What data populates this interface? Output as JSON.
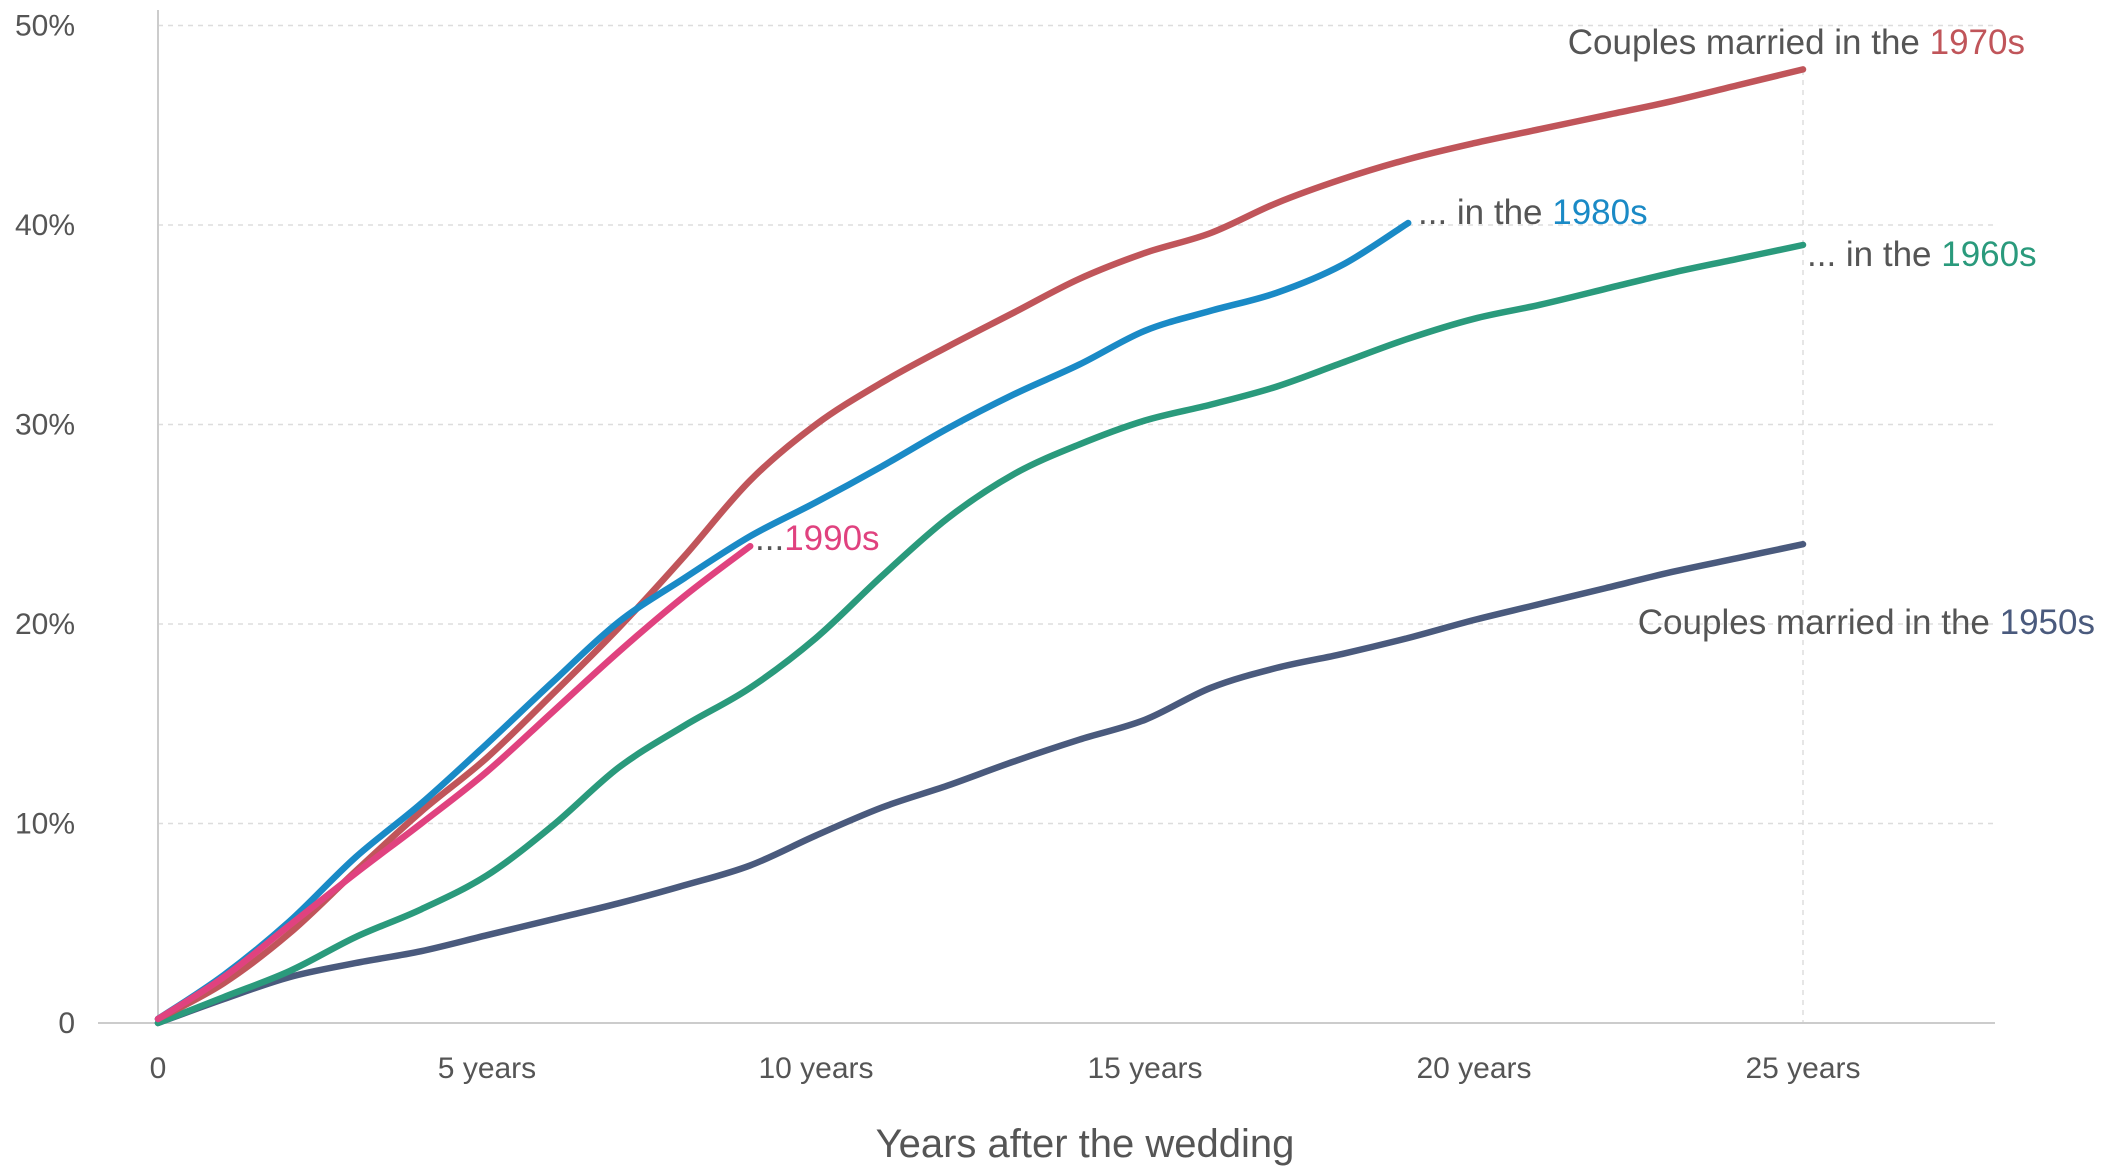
{
  "chart_data": {
    "type": "line",
    "xlabel": "Years after the wedding",
    "ylabel": "",
    "xlim": [
      0,
      28
    ],
    "ylim": [
      0,
      50
    ],
    "x_ticks": [
      {
        "value": 0,
        "label": "0"
      },
      {
        "value": 5,
        "label": "5 years"
      },
      {
        "value": 10,
        "label": "10 years"
      },
      {
        "value": 15,
        "label": "15 years"
      },
      {
        "value": 20,
        "label": "20 years"
      },
      {
        "value": 25,
        "label": "25 years"
      }
    ],
    "y_ticks": [
      {
        "value": 0,
        "label": "0"
      },
      {
        "value": 10,
        "label": "10%"
      },
      {
        "value": 20,
        "label": "20%"
      },
      {
        "value": 30,
        "label": "30%"
      },
      {
        "value": 40,
        "label": "40%"
      },
      {
        "value": 50,
        "label": "50%"
      }
    ],
    "grid": {
      "horizontal": true,
      "vertical_at_last_tick": true
    },
    "series": [
      {
        "name": "1950s",
        "color": "#4a5a7d",
        "label_prefix": "Couples married in the ",
        "label_highlight": "1950s",
        "x": [
          0,
          1,
          2,
          3,
          4,
          5,
          6,
          7,
          8,
          9,
          10,
          11,
          12,
          13,
          14,
          15,
          16,
          17,
          18,
          19,
          20,
          21,
          22,
          23,
          24,
          25
        ],
        "y": [
          0,
          1.2,
          2.3,
          3.0,
          3.6,
          4.4,
          5.2,
          6.0,
          6.9,
          7.9,
          9.4,
          10.8,
          11.9,
          13.1,
          14.2,
          15.2,
          16.8,
          17.8,
          18.5,
          19.3,
          20.2,
          21.0,
          21.8,
          22.6,
          23.3,
          24.0
        ]
      },
      {
        "name": "1960s",
        "color": "#2a9a7c",
        "label_prefix": "... in the ",
        "label_highlight": "1960s",
        "x": [
          0,
          1,
          2,
          3,
          4,
          5,
          6,
          7,
          8,
          9,
          10,
          11,
          12,
          13,
          14,
          15,
          16,
          17,
          18,
          19,
          20,
          21,
          22,
          23,
          24,
          25
        ],
        "y": [
          0,
          1.3,
          2.6,
          4.3,
          5.7,
          7.4,
          9.9,
          12.8,
          14.9,
          16.8,
          19.3,
          22.4,
          25.3,
          27.5,
          29.0,
          30.2,
          31.0,
          31.9,
          33.1,
          34.3,
          35.3,
          36.0,
          36.8,
          37.6,
          38.3,
          39.0
        ]
      },
      {
        "name": "1970s",
        "color": "#c0555a",
        "label_prefix": "Couples married in the ",
        "label_highlight": "1970s",
        "x": [
          0,
          1,
          2,
          3,
          4,
          5,
          6,
          7,
          8,
          9,
          10,
          11,
          12,
          13,
          14,
          15,
          16,
          17,
          18,
          19,
          20,
          21,
          22,
          23,
          24,
          25
        ],
        "y": [
          0.2,
          2.0,
          4.5,
          7.6,
          10.6,
          13.3,
          16.5,
          19.8,
          23.4,
          27.2,
          30.0,
          32.1,
          33.9,
          35.6,
          37.3,
          38.6,
          39.6,
          41.1,
          42.3,
          43.3,
          44.1,
          44.8,
          45.5,
          46.2,
          47.0,
          47.8
        ]
      },
      {
        "name": "1980s",
        "color": "#1a8ac6",
        "label_prefix": "... in the ",
        "label_highlight": "1980s",
        "x": [
          0,
          1,
          2,
          3,
          4,
          5,
          6,
          7,
          8,
          9,
          10,
          11,
          12,
          13,
          14,
          15,
          16,
          17,
          18,
          19
        ],
        "y": [
          0.2,
          2.4,
          5.1,
          8.3,
          11.0,
          14.0,
          17.1,
          20.1,
          22.3,
          24.4,
          26.1,
          27.9,
          29.8,
          31.5,
          33.0,
          34.7,
          35.7,
          36.6,
          38.0,
          40.1
        ]
      },
      {
        "name": "1990s",
        "color": "#e0427f",
        "label_prefix": "...",
        "label_highlight": "1990s",
        "x": [
          0,
          1,
          2,
          3,
          4,
          5,
          6,
          7,
          8,
          9
        ],
        "y": [
          0.2,
          2.3,
          4.9,
          7.5,
          10.0,
          12.6,
          15.6,
          18.6,
          21.4,
          23.9
        ]
      }
    ]
  }
}
